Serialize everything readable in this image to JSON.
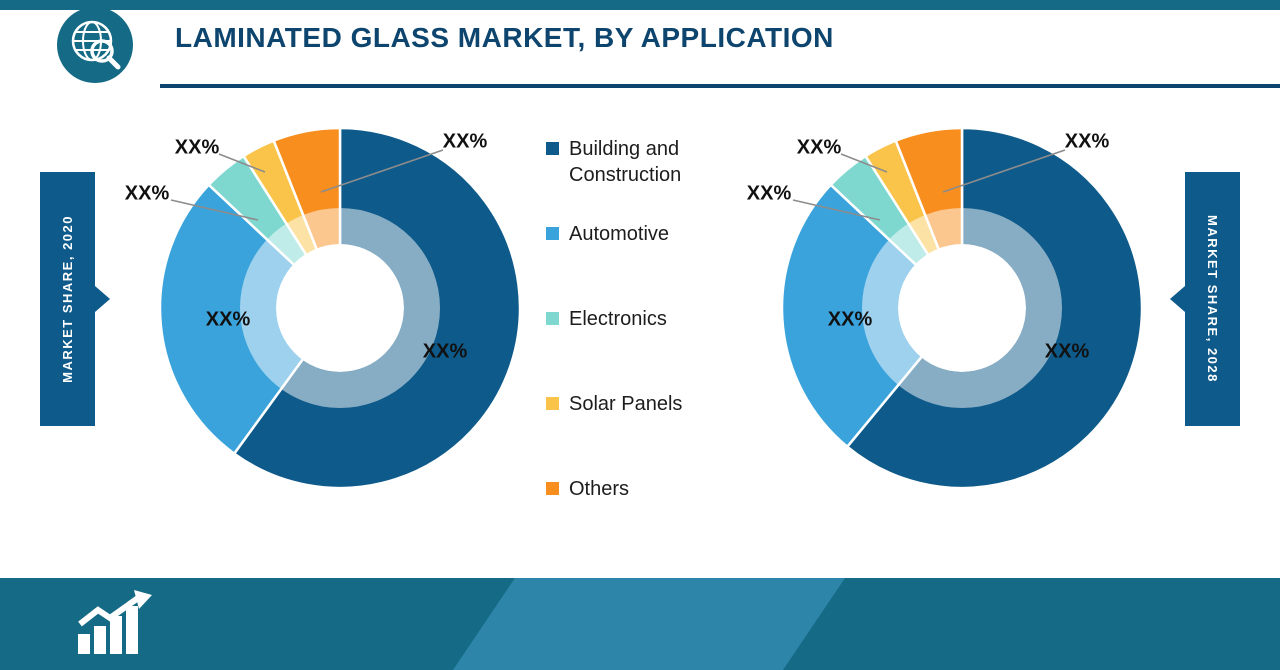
{
  "header": {
    "title": "LAMINATED GLASS MARKET, BY APPLICATION",
    "logo_icon": "globe-magnifier-icon"
  },
  "ribbons": {
    "left": "MARKET SHARE, 2020",
    "right": "MARKET SHARE, 2028"
  },
  "legend": [
    {
      "label": "Building and Construction",
      "color": "#0e5a8a"
    },
    {
      "label": "Automotive",
      "color": "#3aa3dc"
    },
    {
      "label": "Electronics",
      "color": "#7fd8d0"
    },
    {
      "label": "Solar Panels",
      "color": "#f9c449"
    },
    {
      "label": "Others",
      "color": "#f78e1e"
    }
  ],
  "footer": {
    "icon": "bar-chart-growth-icon"
  },
  "theme": {
    "teal": "#156b85",
    "navy_text": "#0d456e",
    "ribbon_blue": "#0e5a8a",
    "band_blue": "#2d85a9",
    "leader_gray": "#8c8c8c"
  },
  "chart_data": [
    {
      "type": "pie",
      "variant": "donut",
      "title": "MARKET SHARE, 2020",
      "categories": [
        "Building and Construction",
        "Automotive",
        "Electronics",
        "Solar Panels",
        "Others"
      ],
      "values": [
        60,
        27,
        4,
        3,
        6
      ],
      "display_labels": [
        "XX%",
        "XX%",
        "XX%",
        "XX%",
        "XX%"
      ],
      "colors": [
        "#0e5a8a",
        "#3aa3dc",
        "#7fd8d0",
        "#f9c449",
        "#f78e1e"
      ],
      "note": "Percent labels shown as XX% placeholders; values are visual angle estimates"
    },
    {
      "type": "pie",
      "variant": "donut",
      "title": "MARKET SHARE, 2028",
      "categories": [
        "Building and Construction",
        "Automotive",
        "Electronics",
        "Solar Panels",
        "Others"
      ],
      "values": [
        61,
        26,
        4,
        3,
        6
      ],
      "display_labels": [
        "XX%",
        "XX%",
        "XX%",
        "XX%",
        "XX%"
      ],
      "colors": [
        "#0e5a8a",
        "#3aa3dc",
        "#7fd8d0",
        "#f9c449",
        "#f78e1e"
      ],
      "note": "Percent labels shown as XX% placeholders; values are visual angle estimates"
    }
  ]
}
